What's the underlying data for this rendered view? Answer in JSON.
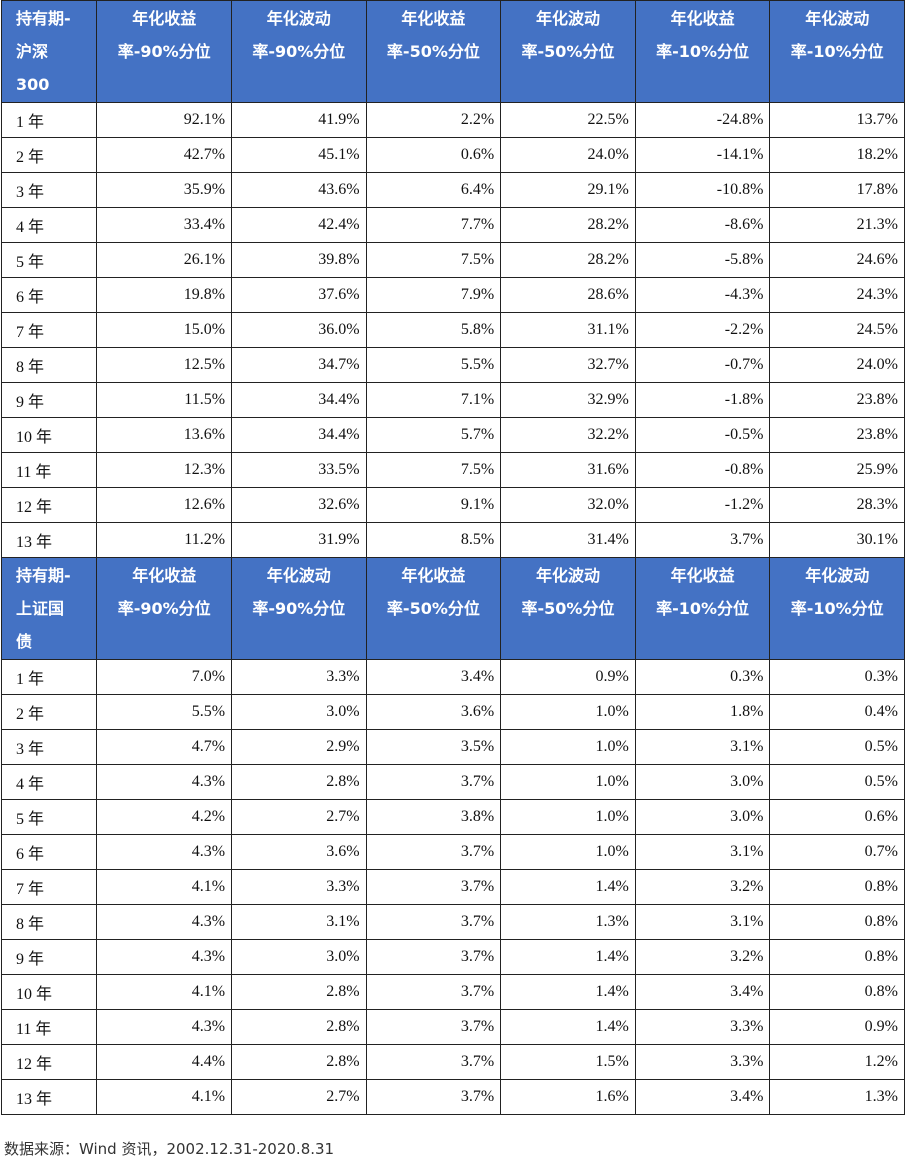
{
  "tables": [
    {
      "header": [
        "持有期-沪深300",
        "年化收益率-90%分位",
        "年化波动率-90%分位",
        "年化收益率-50%分位",
        "年化波动率-50%分位",
        "年化收益率-10%分位",
        "年化波动率-10%分位"
      ],
      "rows": [
        [
          "1 年",
          "92.1%",
          "41.9%",
          "2.2%",
          "22.5%",
          "-24.8%",
          "13.7%"
        ],
        [
          "2 年",
          "42.7%",
          "45.1%",
          "0.6%",
          "24.0%",
          "-14.1%",
          "18.2%"
        ],
        [
          "3 年",
          "35.9%",
          "43.6%",
          "6.4%",
          "29.1%",
          "-10.8%",
          "17.8%"
        ],
        [
          "4 年",
          "33.4%",
          "42.4%",
          "7.7%",
          "28.2%",
          "-8.6%",
          "21.3%"
        ],
        [
          "5 年",
          "26.1%",
          "39.8%",
          "7.5%",
          "28.2%",
          "-5.8%",
          "24.6%"
        ],
        [
          "6 年",
          "19.8%",
          "37.6%",
          "7.9%",
          "28.6%",
          "-4.3%",
          "24.3%"
        ],
        [
          "7 年",
          "15.0%",
          "36.0%",
          "5.8%",
          "31.1%",
          "-2.2%",
          "24.5%"
        ],
        [
          "8 年",
          "12.5%",
          "34.7%",
          "5.5%",
          "32.7%",
          "-0.7%",
          "24.0%"
        ],
        [
          "9 年",
          "11.5%",
          "34.4%",
          "7.1%",
          "32.9%",
          "-1.8%",
          "23.8%"
        ],
        [
          "10 年",
          "13.6%",
          "34.4%",
          "5.7%",
          "32.2%",
          "-0.5%",
          "23.8%"
        ],
        [
          "11 年",
          "12.3%",
          "33.5%",
          "7.5%",
          "31.6%",
          "-0.8%",
          "25.9%"
        ],
        [
          "12 年",
          "12.6%",
          "32.6%",
          "9.1%",
          "32.0%",
          "-1.2%",
          "28.3%"
        ],
        [
          "13 年",
          "11.2%",
          "31.9%",
          "8.5%",
          "31.4%",
          "3.7%",
          "30.1%"
        ]
      ]
    },
    {
      "header": [
        "持有期-上证国债",
        "年化收益率-90%分位",
        "年化波动率-90%分位",
        "年化收益率-50%分位",
        "年化波动率-50%分位",
        "年化收益率-10%分位",
        "年化波动率-10%分位"
      ],
      "rows": [
        [
          "1 年",
          "7.0%",
          "3.3%",
          "3.4%",
          "0.9%",
          "0.3%",
          "0.3%"
        ],
        [
          "2 年",
          "5.5%",
          "3.0%",
          "3.6%",
          "1.0%",
          "1.8%",
          "0.4%"
        ],
        [
          "3 年",
          "4.7%",
          "2.9%",
          "3.5%",
          "1.0%",
          "3.1%",
          "0.5%"
        ],
        [
          "4 年",
          "4.3%",
          "2.8%",
          "3.7%",
          "1.0%",
          "3.0%",
          "0.5%"
        ],
        [
          "5 年",
          "4.2%",
          "2.7%",
          "3.8%",
          "1.0%",
          "3.0%",
          "0.6%"
        ],
        [
          "6 年",
          "4.3%",
          "3.6%",
          "3.7%",
          "1.0%",
          "3.1%",
          "0.7%"
        ],
        [
          "7 年",
          "4.1%",
          "3.3%",
          "3.7%",
          "1.4%",
          "3.2%",
          "0.8%"
        ],
        [
          "8 年",
          "4.3%",
          "3.1%",
          "3.7%",
          "1.3%",
          "3.1%",
          "0.8%"
        ],
        [
          "9 年",
          "4.3%",
          "3.0%",
          "3.7%",
          "1.4%",
          "3.2%",
          "0.8%"
        ],
        [
          "10 年",
          "4.1%",
          "2.8%",
          "3.7%",
          "1.4%",
          "3.4%",
          "0.8%"
        ],
        [
          "11 年",
          "4.3%",
          "2.8%",
          "3.7%",
          "1.4%",
          "3.3%",
          "0.9%"
        ],
        [
          "12 年",
          "4.4%",
          "2.8%",
          "3.7%",
          "1.5%",
          "3.3%",
          "1.2%"
        ],
        [
          "13 年",
          "4.1%",
          "2.7%",
          "3.7%",
          "1.6%",
          "3.4%",
          "1.3%"
        ]
      ]
    }
  ],
  "source": "数据来源：Wind 资讯，2002.12.31-2020.8.31"
}
